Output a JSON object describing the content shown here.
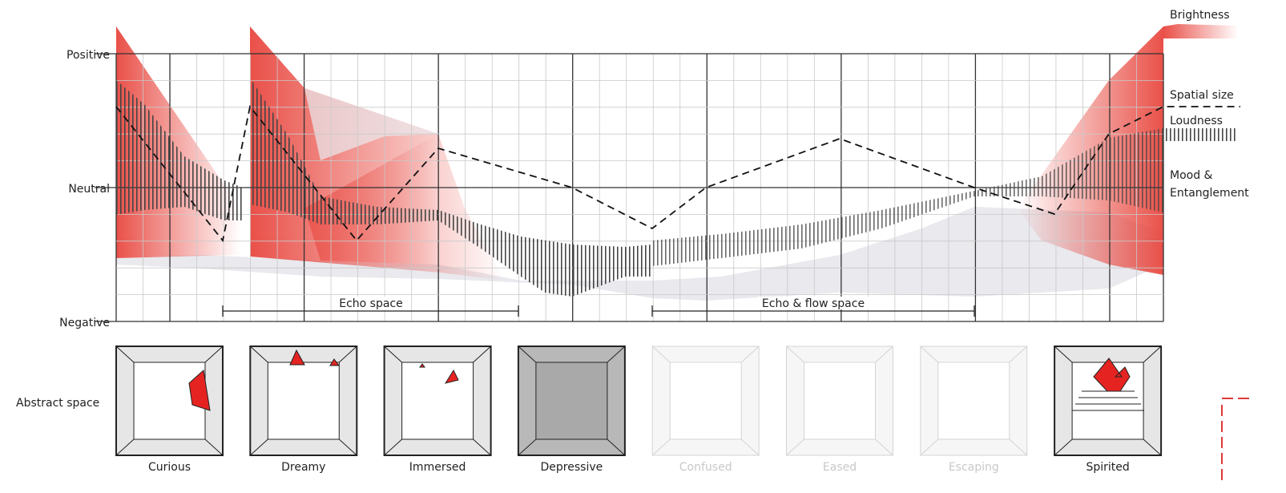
{
  "axis": {
    "positive": "Positive",
    "neutral": "Neutral",
    "negative": "Negative"
  },
  "legend": {
    "brightness": "Brightness",
    "spatial_size": "Spatial size",
    "loudness": "Loudness",
    "mood": [
      "Mood &",
      "Entanglement"
    ]
  },
  "ranges": [
    "Echo space",
    "Echo & flow space"
  ],
  "abstract_space": "Abstract space",
  "rooms": [
    "Curious",
    "Dreamy",
    "Immersed",
    "Depressive",
    "Confused",
    "Eased",
    "Escaping",
    "Spirited"
  ]
}
